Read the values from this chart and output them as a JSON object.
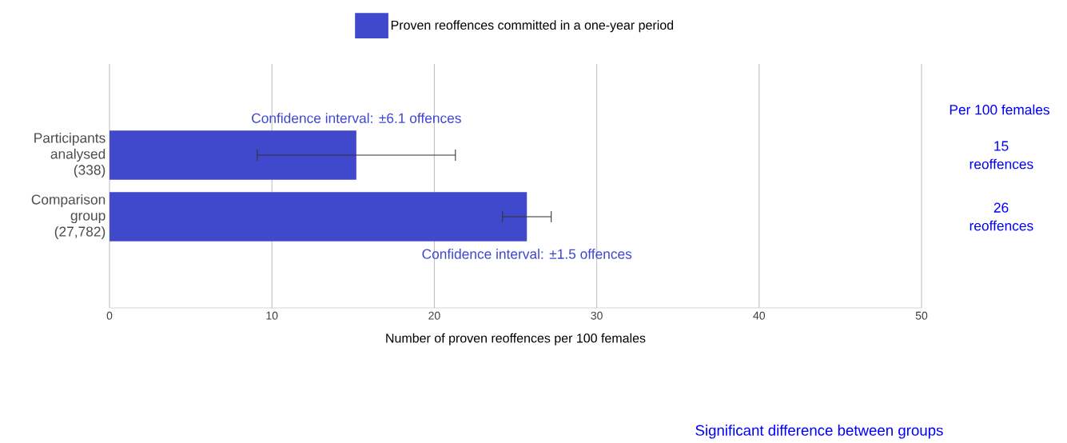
{
  "chart_data": {
    "type": "bar",
    "orientation": "horizontal",
    "categories": [
      "Participants analysed (338)",
      "Comparison group (27,782)"
    ],
    "series": [
      {
        "name": "Proven reoffences committed in a one-year period",
        "color": "#4049cc",
        "values": [
          15.2,
          25.7
        ],
        "errors": [
          6.1,
          1.5
        ],
        "value_labels": [
          "15 reoffences",
          "26 reoffences"
        ]
      }
    ],
    "xlabel": "Number of proven reoffences per 100 females",
    "xlim": [
      0,
      50
    ],
    "xticks": [
      0,
      10,
      20,
      30,
      40,
      50
    ],
    "grid": "x",
    "legend": "top",
    "annotations": [
      "Confidence interval: ±6.1 offences",
      "Confidence interval: ±1.5 offences",
      "Per 100 females",
      "Significant difference between groups"
    ]
  }
}
